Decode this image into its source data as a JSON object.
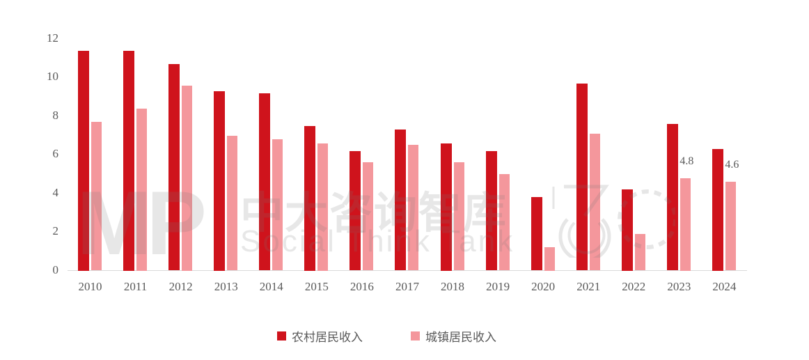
{
  "chart_data": {
    "type": "bar",
    "title": "",
    "xlabel": "",
    "ylabel": "",
    "ylim": [
      0,
      12
    ],
    "yticks": [
      0,
      2,
      4,
      6,
      8,
      10,
      12
    ],
    "grid": false,
    "legend_position": "bottom",
    "categories": [
      "2010",
      "2011",
      "2012",
      "2013",
      "2014",
      "2015",
      "2016",
      "2017",
      "2018",
      "2019",
      "2020",
      "2021",
      "2022",
      "2023",
      "2024"
    ],
    "series": [
      {
        "name": "农村居民收入",
        "color": "#CF131C",
        "values": [
          11.4,
          11.4,
          10.7,
          9.3,
          9.2,
          7.5,
          6.2,
          7.3,
          6.6,
          6.2,
          3.8,
          9.7,
          4.2,
          7.6,
          6.3
        ]
      },
      {
        "name": "城镇居民收入",
        "color": "#F4979C",
        "values": [
          7.7,
          8.4,
          9.6,
          7.0,
          6.8,
          6.6,
          5.6,
          6.5,
          5.6,
          5.0,
          1.2,
          7.1,
          1.9,
          4.8,
          4.6
        ]
      }
    ],
    "annotations": [
      {
        "category": "2023",
        "series": "城镇居民收入",
        "text": "4.8"
      },
      {
        "category": "2024",
        "series": "城镇居民收入",
        "text": "4.6"
      }
    ]
  },
  "legend": {
    "items": [
      {
        "label": "农村居民收入",
        "color": "#CF131C"
      },
      {
        "label": "城镇居民收入",
        "color": "#F4979C"
      }
    ]
  },
  "watermark": {
    "logo_text": "MP",
    "cn_text": "中大咨询智库",
    "en_text": "Social Think Tank"
  }
}
